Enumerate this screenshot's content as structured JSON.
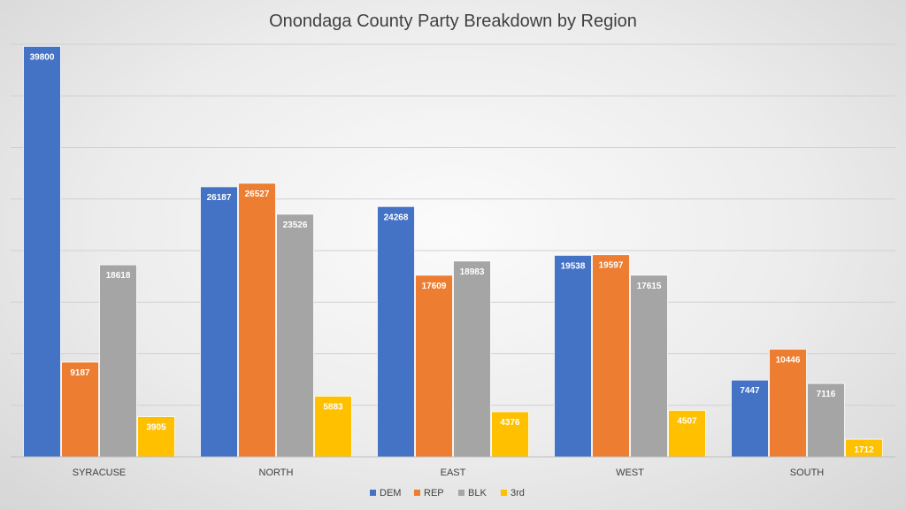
{
  "chart_data": {
    "type": "bar",
    "title": "Onondaga County Party Breakdown by Region",
    "categories": [
      "SYRACUSE",
      "NORTH",
      "EAST",
      "WEST",
      "SOUTH"
    ],
    "series": [
      {
        "name": "DEM",
        "color": "#4472c4",
        "values": [
          39800,
          26187,
          24268,
          19538,
          7447
        ]
      },
      {
        "name": "REP",
        "color": "#ed7d31",
        "values": [
          9187,
          26527,
          17609,
          19597,
          10446
        ]
      },
      {
        "name": "BLK",
        "color": "#a5a5a5",
        "values": [
          18618,
          23526,
          18983,
          17615,
          7116
        ]
      },
      {
        "name": "3rd",
        "color": "#ffc000",
        "values": [
          3905,
          5883,
          4376,
          4507,
          1712
        ]
      }
    ],
    "ylim": [
      0,
      40000
    ],
    "gridlines": true,
    "data_labels": true,
    "legend_position": "bottom"
  }
}
